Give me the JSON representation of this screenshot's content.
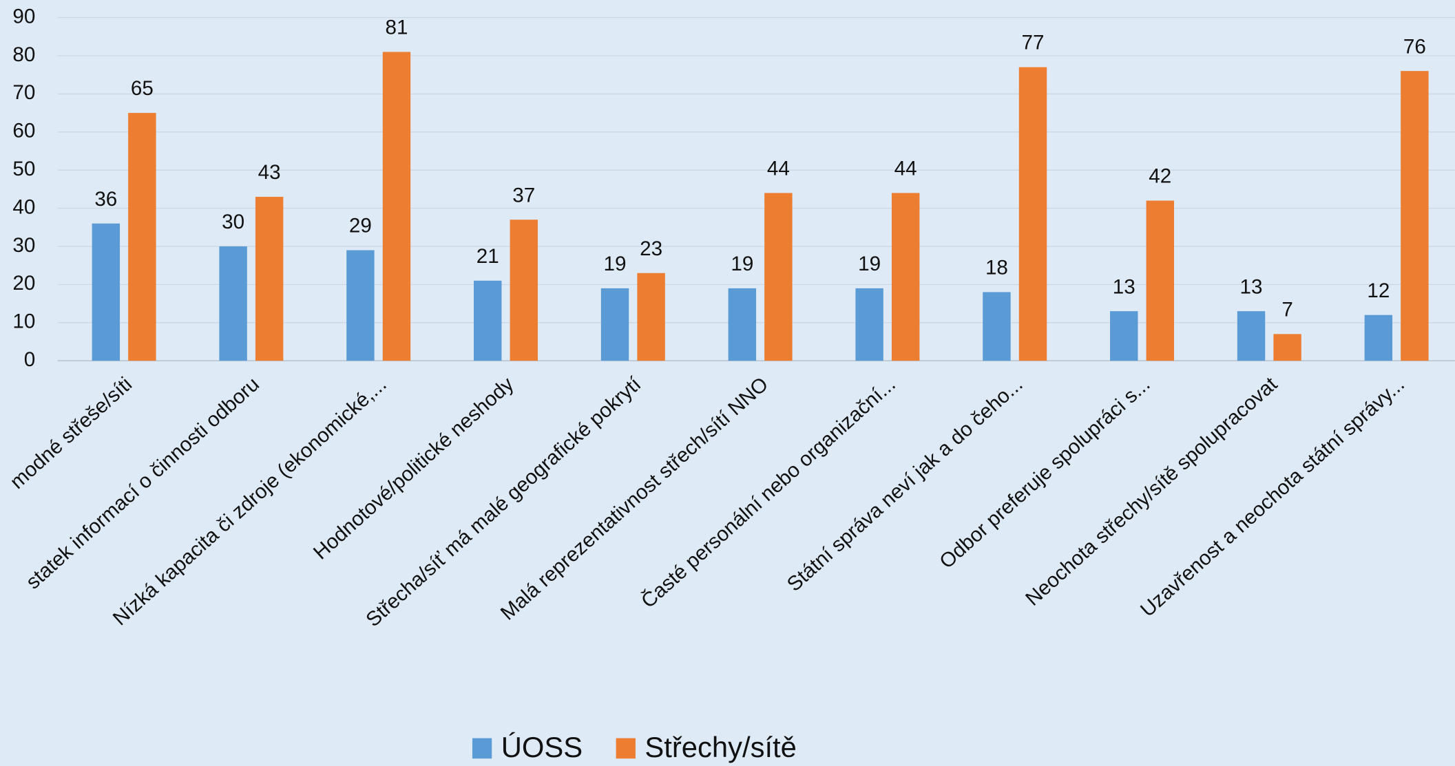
{
  "chart_data": {
    "type": "bar",
    "categories": [
      "modné střeše/síti",
      "statek informací o činnosti odboru",
      "Nízká kapacita či zdroje (ekonomické,...",
      "Hodnotové/politické neshody",
      "Střecha/síť má malé geografické pokrytí",
      "Malá reprezentativnost střech/sítí NNO",
      "Časté personální nebo organizační...",
      "Státní správa neví jak a do čeho...",
      "Odbor preferuje spolupráci s...",
      "Neochota střechy/sítě spolupracovat",
      "Uzavřenost a neochota státní správy..."
    ],
    "series": [
      {
        "name": "ÚOSS",
        "color": "#5b9bd5",
        "values": [
          36,
          30,
          29,
          21,
          19,
          19,
          19,
          18,
          13,
          13,
          12
        ]
      },
      {
        "name": "Střechy/sítě",
        "color": "#ed7d31",
        "values": [
          65,
          43,
          81,
          37,
          23,
          44,
          44,
          77,
          42,
          7,
          76
        ]
      }
    ],
    "ylim": [
      0,
      90
    ],
    "yticks": [
      0,
      10,
      20,
      30,
      40,
      50,
      60,
      70,
      80,
      90
    ],
    "grid": true,
    "legend": "bottom"
  }
}
